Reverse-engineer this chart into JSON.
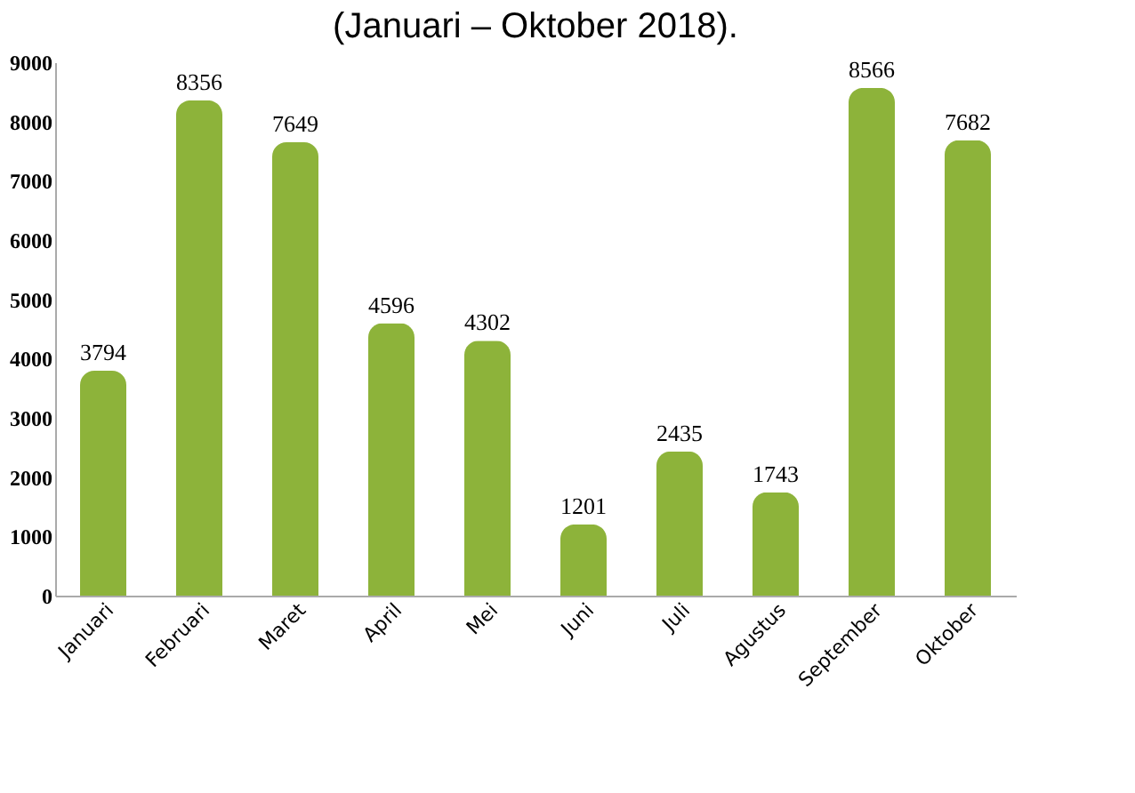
{
  "chart_data": {
    "type": "bar",
    "title": "(Januari – Oktober 2018).",
    "categories": [
      "Januari",
      "Februari",
      "Maret",
      "April",
      "Mei",
      "Juni",
      "Juli",
      "Agustus",
      "September",
      "Oktober"
    ],
    "values": [
      3794,
      8356,
      7649,
      4596,
      4302,
      1201,
      2435,
      1743,
      8566,
      7682
    ],
    "color": "#8db33a",
    "ylim": [
      0,
      9000
    ],
    "yticks": [
      0,
      1000,
      2000,
      3000,
      4000,
      5000,
      6000,
      7000,
      8000,
      9000
    ],
    "data_labels": true
  }
}
